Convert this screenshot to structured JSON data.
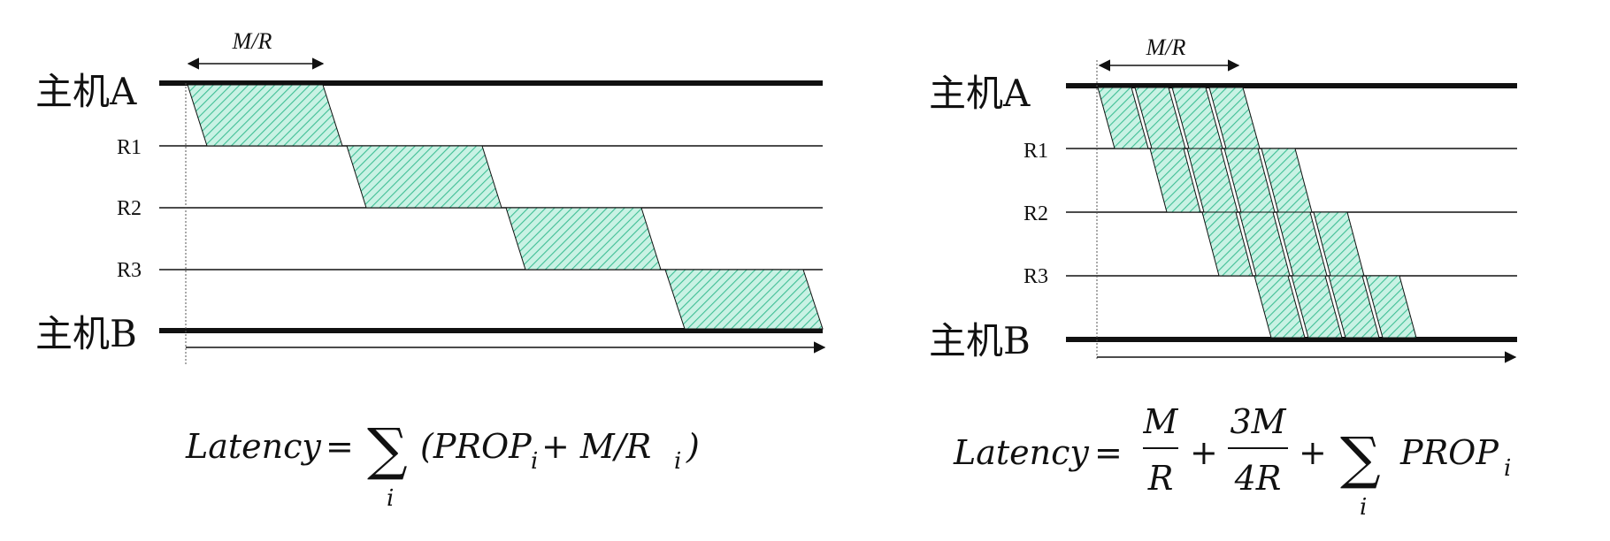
{
  "left_diagram": {
    "host_a": "主机A",
    "host_b": "主机B",
    "routers": [
      "R1",
      "R2",
      "R3"
    ],
    "interval_label": "M/R",
    "formula": {
      "lhs": "Latency",
      "equals": "=",
      "sum_index": "i",
      "term": "(PROP",
      "term_sub": "i",
      "term_mid": " + M/R",
      "term_sub2": "i",
      "term_close": ")"
    }
  },
  "right_diagram": {
    "host_a": "主机A",
    "host_b": "主机B",
    "routers": [
      "R1",
      "R2",
      "R3"
    ],
    "interval_label": "M/R",
    "formula": {
      "lhs": "Latency",
      "equals": "=",
      "frac1_num": "M",
      "frac1_den": "R",
      "plus1": "+",
      "frac2_num": "3M",
      "frac2_den": "4R",
      "plus2": "+",
      "sum_index": "i",
      "term": "PROP",
      "term_sub": "i"
    }
  },
  "colors": {
    "fill": "#bfeedd",
    "hatch": "#3fbf95",
    "line": "#111111"
  }
}
